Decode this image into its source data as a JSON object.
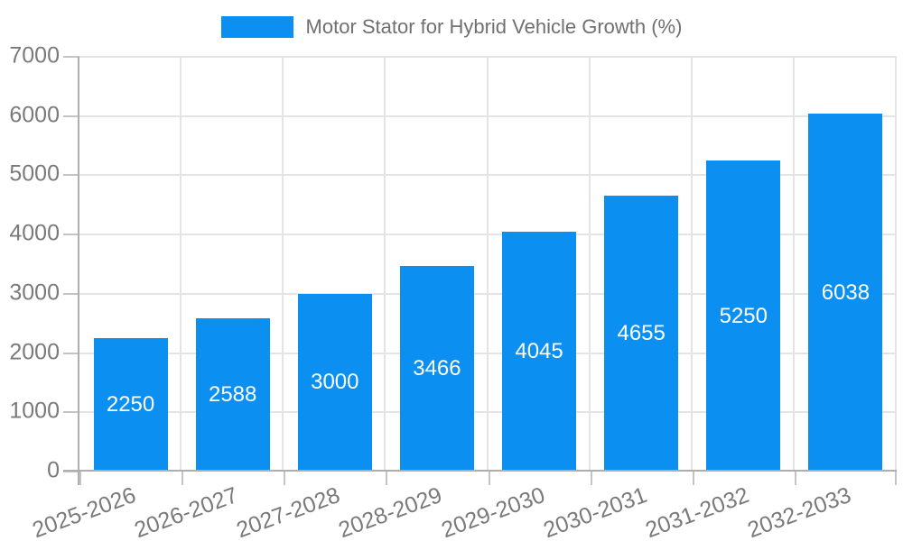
{
  "chart_data": {
    "type": "bar",
    "title": "Motor Stator for Hybrid Vehicle Growth (%)",
    "legend": {
      "position": "top",
      "entries": [
        "Motor Stator for Hybrid Vehicle Growth (%)"
      ]
    },
    "categories": [
      "2025-2026",
      "2026-2027",
      "2027-2028",
      "2028-2029",
      "2029-2030",
      "2030-2031",
      "2031-2032",
      "2032-2033"
    ],
    "values": [
      2250,
      2588,
      3000,
      3466,
      4045,
      4655,
      5250,
      6038
    ],
    "bar_value_labels": [
      "2250",
      "2588",
      "3000",
      "3466",
      "4045",
      "4655",
      "5250",
      "6038"
    ],
    "bar_label_position": "inside-center",
    "xlabel": "",
    "ylabel": "",
    "ylim": [
      0,
      7000
    ],
    "yticks": [
      0,
      1000,
      2000,
      3000,
      4000,
      5000,
      6000,
      7000
    ],
    "grid": true,
    "x_label_rotation_deg": -20,
    "colors": {
      "bar": "#0b90f2",
      "bar_label_text": "#ffffff",
      "axis_text": "#7a7a7a",
      "legend_text": "#707070",
      "gridline": "#e4e4e4",
      "axis_line": "#aeaeae",
      "tick_mark": "#c4c4c4",
      "background": "#ffffff"
    }
  }
}
